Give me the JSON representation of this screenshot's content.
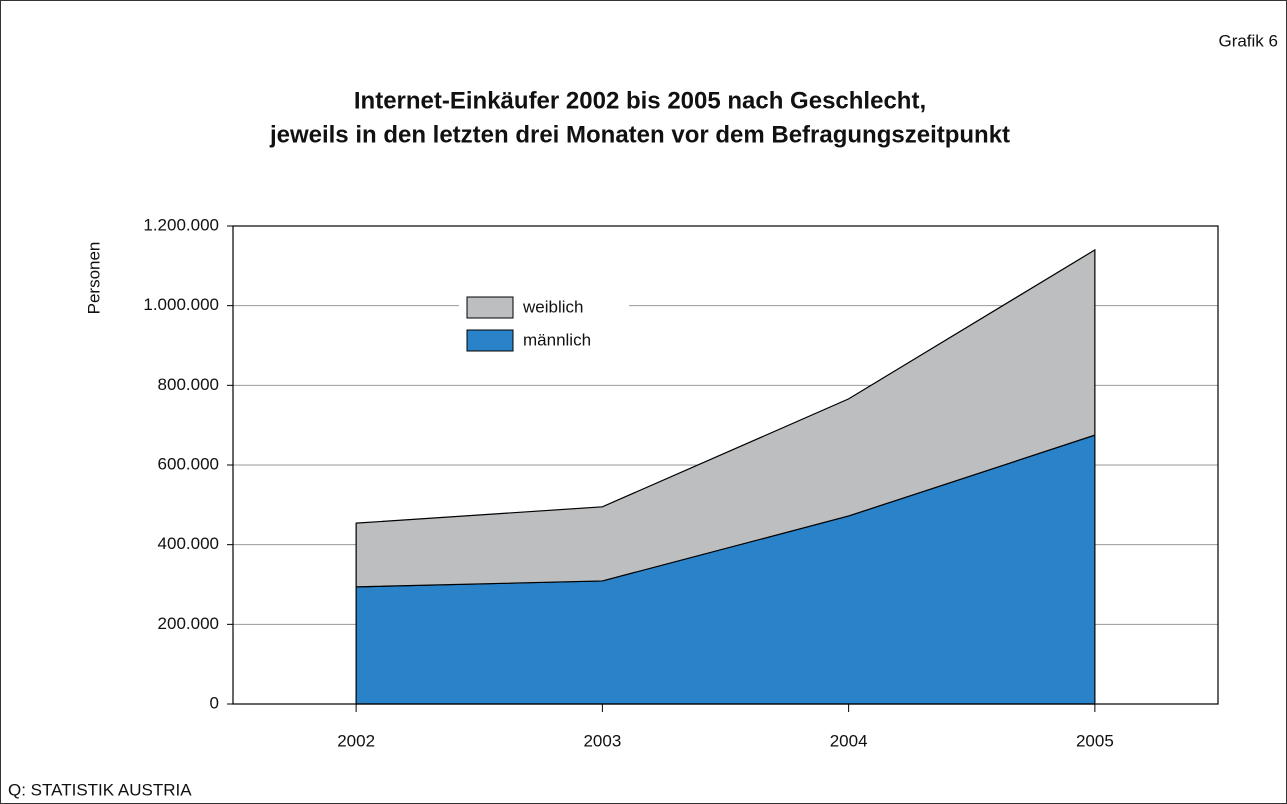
{
  "chart_data": {
    "type": "stacked_area",
    "label": "Grafik 6",
    "title": [
      "Internet-Einkäufer 2002 bis 2005 nach Geschlecht,",
      "jeweils in den letzten drei Monaten vor dem Befragungszeitpunkt"
    ],
    "y_label": "Personen",
    "source": "Q: STATISTIK AUSTRIA",
    "categories": [
      "2002",
      "2003",
      "2004",
      "2005"
    ],
    "series": [
      {
        "name": "männlich",
        "color": "#2a83c8",
        "values": [
          294000,
          309000,
          472000,
          675000
        ]
      },
      {
        "name": "weiblich",
        "color": "#bcbec0",
        "values": [
          160000,
          186000,
          294000,
          465000
        ]
      }
    ],
    "ylim": [
      0,
      1200000
    ],
    "yticks": [
      0,
      {
        "value": 200000,
        "label": "200.000"
      },
      {
        "value": 400000,
        "label": "400.000"
      },
      {
        "value": 600000,
        "label": "600.000"
      },
      {
        "value": 800000,
        "label": "800.000"
      },
      {
        "value": 1000000,
        "label": "1.000.000"
      },
      {
        "value": 1200000,
        "label": "1.200.000"
      }
    ],
    "grid": true,
    "legend": "upper left"
  }
}
